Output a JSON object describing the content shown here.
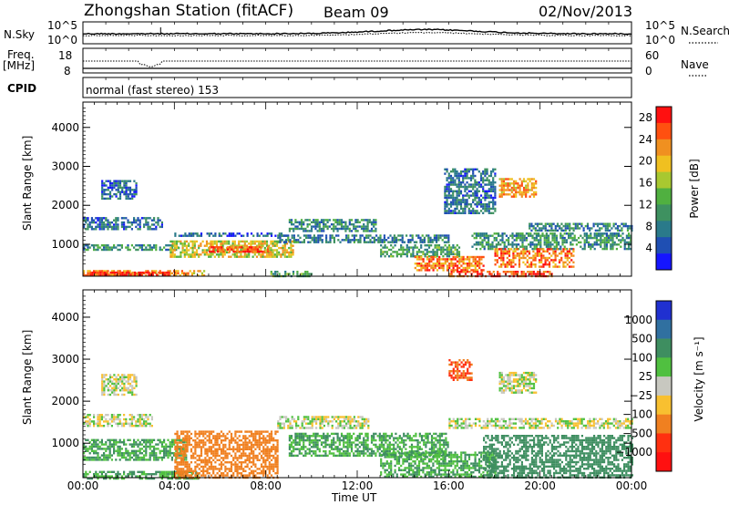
{
  "header": {
    "station": "Zhongshan Station (fitACF)",
    "beam": "Beam 09",
    "date": "02/Nov/2013"
  },
  "noise_panel": {
    "left_label": "N.Sky",
    "left_ticks": [
      "10^5",
      "10^0"
    ],
    "right_ticks": [
      "10^5",
      "10^0"
    ],
    "right_label": "N.Search",
    "right_legend_style": "dotted"
  },
  "freq_panel": {
    "left_label_top": "Freq.",
    "left_label_bottom": "[MHz]",
    "left_ticks": [
      "18",
      "8"
    ],
    "right_ticks": [
      "60",
      "0"
    ],
    "right_label": "Nave",
    "right_legend_style": "dotted"
  },
  "cpid": {
    "label": "CPID",
    "value": "normal (fast stereo) 153"
  },
  "x_axis": {
    "label": "Time UT",
    "ticks": [
      "00:00",
      "04:00",
      "08:00",
      "12:00",
      "16:00",
      "20:00",
      "00:00"
    ],
    "range_hours": [
      0,
      24
    ]
  },
  "chart_data": [
    {
      "type": "heatmap",
      "name": "power",
      "ylabel": "Slant Range [km]",
      "yticks": [
        "1000",
        "2000",
        "3000",
        "4000"
      ],
      "ylim": [
        180,
        4650
      ],
      "colorbar": {
        "label": "Power [dB]",
        "ticks": [
          "4",
          "8",
          "12",
          "16",
          "20",
          "24",
          "28"
        ],
        "range": [
          0,
          30
        ],
        "colors": [
          "#1515ff",
          "#1f4fb3",
          "#2a7a8a",
          "#3e9160",
          "#50b040",
          "#a8c830",
          "#f0c020",
          "#f09020",
          "#ff5010",
          "#ff1010"
        ]
      },
      "regions": [
        {
          "t": [
            0.0,
            5.3
          ],
          "r": [
            180,
            340
          ],
          "value": 22
        },
        {
          "t": [
            0.3,
            4.0
          ],
          "r": [
            220,
            300
          ],
          "value": 28
        },
        {
          "t": [
            0.0,
            4.2
          ],
          "r": [
            850,
            1000
          ],
          "value": 10
        },
        {
          "t": [
            0.0,
            3.5
          ],
          "r": [
            1400,
            1700
          ],
          "value": 7
        },
        {
          "t": [
            0.8,
            2.3
          ],
          "r": [
            2150,
            2650
          ],
          "value": 6
        },
        {
          "t": [
            3.8,
            9.2
          ],
          "r": [
            700,
            1100
          ],
          "value": 18
        },
        {
          "t": [
            5.5,
            8.2
          ],
          "r": [
            800,
            950
          ],
          "value": 26
        },
        {
          "t": [
            4.0,
            9.0
          ],
          "r": [
            1200,
            1300
          ],
          "value": 6
        },
        {
          "t": [
            8.2,
            10.0
          ],
          "r": [
            200,
            320
          ],
          "value": 12
        },
        {
          "t": [
            9.0,
            12.8
          ],
          "r": [
            1350,
            1650
          ],
          "value": 9
        },
        {
          "t": [
            8.5,
            16.0
          ],
          "r": [
            1080,
            1250
          ],
          "value": 8
        },
        {
          "t": [
            13.0,
            16.5
          ],
          "r": [
            700,
            1000
          ],
          "value": 11
        },
        {
          "t": [
            14.5,
            17.5
          ],
          "r": [
            350,
            700
          ],
          "value": 24
        },
        {
          "t": [
            16.0,
            20.5
          ],
          "r": [
            180,
            320
          ],
          "value": 26
        },
        {
          "t": [
            17.0,
            24.0
          ],
          "r": [
            900,
            1300
          ],
          "value": 10
        },
        {
          "t": [
            18.0,
            21.5
          ],
          "r": [
            450,
            900
          ],
          "value": 24
        },
        {
          "t": [
            18.2,
            19.8
          ],
          "r": [
            2200,
            2700
          ],
          "value": 22
        },
        {
          "t": [
            15.8,
            18.0
          ],
          "r": [
            1800,
            2950
          ],
          "value": 7
        },
        {
          "t": [
            19.5,
            24.0
          ],
          "r": [
            1350,
            1550
          ],
          "value": 8
        }
      ]
    },
    {
      "type": "heatmap",
      "name": "velocity",
      "ylabel": "Slant Range [km]",
      "yticks": [
        "1000",
        "2000",
        "3000",
        "4000"
      ],
      "ylim": [
        180,
        4650
      ],
      "colorbar": {
        "label": "Velocity [m s⁻¹]",
        "ticks": [
          "1000",
          "500",
          "100",
          "25",
          "−25",
          "−100",
          "−500",
          "−1000"
        ],
        "colors": [
          "#2030d0",
          "#3070a0",
          "#3e8e60",
          "#50c040",
          "#c8c8c0",
          "#f8c030",
          "#f08020",
          "#ff3010",
          "#ff1010"
        ]
      },
      "regions": [
        {
          "t": [
            0.0,
            5.0
          ],
          "r": [
            180,
            340
          ],
          "value": 100
        },
        {
          "t": [
            0.0,
            4.5
          ],
          "r": [
            600,
            1100
          ],
          "value": 100
        },
        {
          "t": [
            0.8,
            2.3
          ],
          "r": [
            2150,
            2650
          ],
          "value": 0
        },
        {
          "t": [
            0.0,
            3.0
          ],
          "r": [
            1400,
            1700
          ],
          "value": 0
        },
        {
          "t": [
            4.0,
            8.5
          ],
          "r": [
            200,
            1300
          ],
          "value": -300
        },
        {
          "t": [
            8.5,
            12.5
          ],
          "r": [
            1350,
            1650
          ],
          "value": 0
        },
        {
          "t": [
            9.0,
            16.0
          ],
          "r": [
            700,
            1250
          ],
          "value": 100
        },
        {
          "t": [
            13.0,
            18.0
          ],
          "r": [
            200,
            800
          ],
          "value": 100
        },
        {
          "t": [
            16.0,
            24.0
          ],
          "r": [
            1350,
            1600
          ],
          "value": 0
        },
        {
          "t": [
            17.5,
            24.0
          ],
          "r": [
            200,
            1200
          ],
          "value": 300
        },
        {
          "t": [
            18.2,
            19.8
          ],
          "r": [
            2200,
            2700
          ],
          "value": 0
        },
        {
          "t": [
            16.0,
            17.0
          ],
          "r": [
            2500,
            3000
          ],
          "value": -500
        }
      ]
    }
  ]
}
